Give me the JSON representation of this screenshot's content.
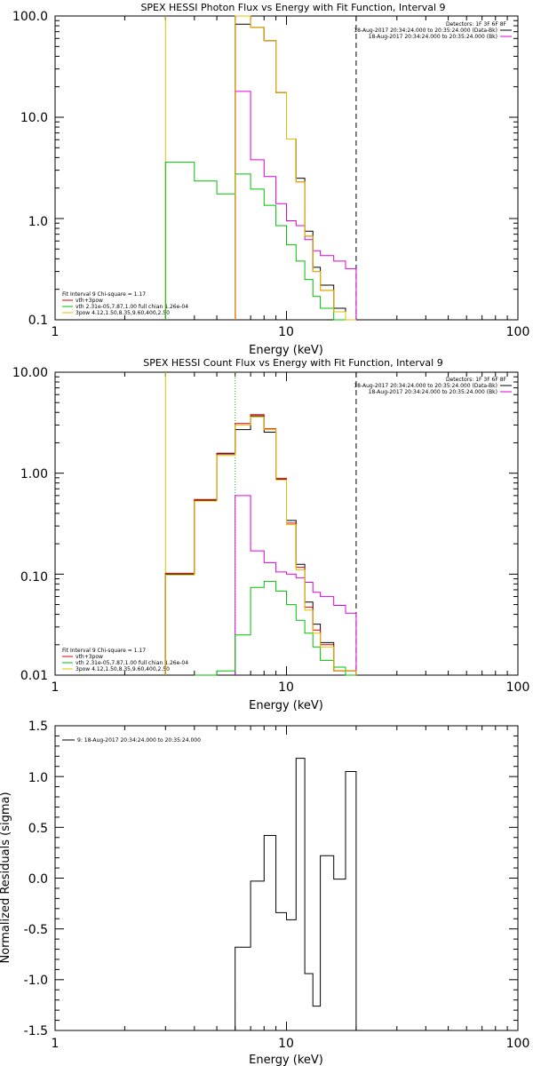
{
  "chart_data": [
    {
      "type": "line",
      "title": "SPEX HESSI Photon Flux vs Energy with Fit Function, Interval 9",
      "xlabel": "Energy (keV)",
      "ylabel": "",
      "xscale": "log",
      "yscale": "log",
      "xlim": [
        1,
        100
      ],
      "ylim": [
        0.1,
        100
      ],
      "xticks": [
        "1",
        "10",
        "100"
      ],
      "yticks": [
        "0.1",
        "1.0",
        "10.0",
        "100.0"
      ],
      "legend_top_right": [
        {
          "text": "Detectors: 1F 3F 6F 8F",
          "color": "#000000"
        },
        {
          "text": "18-Aug-2017 20:34:24.000 to 20:35:24.000 (Data-Bk)",
          "color": "#000000"
        },
        {
          "text": "18-Aug-2017 20:34:24.000 to 20:35:24.000 (Bk)",
          "color": "#e000e0"
        }
      ],
      "legend_bottom_left": [
        {
          "text": "Fit Interval  9    Chi-square = 1.17",
          "color": "#000000"
        },
        {
          "text": "vth+3pow",
          "color": "#e00000"
        },
        {
          "text": "vth 2.31e-05,7.87,1.00  full chian 1.26e-04",
          "color": "#00c000"
        },
        {
          "text": "3pow 4.12,1.50,8.35,9.60,400,2.50",
          "color": "#e0c000"
        }
      ],
      "energy_edges": [
        3,
        4,
        5,
        6,
        7,
        8,
        9,
        10,
        11,
        12,
        13,
        14,
        16,
        18,
        20
      ],
      "series": [
        {
          "name": "Data-Bk",
          "color": "#000000",
          "start_bin": 3,
          "values": [
            83,
            77,
            57,
            17.5,
            6.1,
            2.5,
            0.75,
            0.33,
            0.22,
            0.13,
            0.1
          ]
        },
        {
          "name": "Bk",
          "color": "#e000e0",
          "start_bin": 3,
          "values": [
            18,
            3.8,
            2.6,
            1.4,
            0.95,
            0.85,
            0.62,
            0.48,
            0.43,
            0.38,
            0.32
          ]
        },
        {
          "name": "vth+3pow",
          "color": "#e00000",
          "start_bin": 3,
          "values": [
            100,
            77,
            57,
            17.5,
            6.1,
            2.3,
            0.67,
            0.3,
            0.195,
            0.12,
            0.1
          ]
        },
        {
          "name": "vth",
          "color": "#00c000",
          "start_bin": 0,
          "values": [
            3.6,
            2.35,
            1.75,
            2.75,
            1.95,
            1.35,
            0.85,
            0.55,
            0.38,
            0.25,
            0.17,
            0.13,
            0.1,
            0.1
          ]
        },
        {
          "name": "3pow",
          "color": "#e0c000",
          "start_bin": 3,
          "values": [
            100,
            77,
            57,
            17.5,
            6.1,
            2.3,
            0.67,
            0.3,
            0.195,
            0.12,
            0.1
          ]
        }
      ],
      "vlines": [
        {
          "x": 3,
          "color": "#e0c000",
          "style": "solid",
          "label": ""
        },
        {
          "x": 6,
          "color": "#e000e0",
          "style": "dotted",
          "label": ""
        },
        {
          "x": 20,
          "color": "#000000",
          "style": "dashed",
          "label": ""
        }
      ]
    },
    {
      "type": "line",
      "title": "SPEX HESSI Count Flux vs Energy with Fit Function, Interval 9",
      "xlabel": "Energy (keV)",
      "ylabel": "",
      "xscale": "log",
      "yscale": "log",
      "xlim": [
        1,
        100
      ],
      "ylim": [
        0.01,
        10
      ],
      "xticks": [
        "1",
        "10",
        "100"
      ],
      "yticks": [
        "0.01",
        "0.10",
        "1.00",
        "10.00"
      ],
      "legend_top_right": [
        {
          "text": "Detectors: 1F 3F 6F 8F",
          "color": "#000000"
        },
        {
          "text": "18-Aug-2017 20:34:24.000 to 20:35:24.000 (Data-Bk)",
          "color": "#000000"
        },
        {
          "text": "18-Aug-2017 20:34:24.000 to 20:35:24.000 (Bk)",
          "color": "#e000e0"
        }
      ],
      "legend_bottom_left": [
        {
          "text": "Fit Interval  9    Chi-square = 1.17",
          "color": "#000000"
        },
        {
          "text": "vth+3pow",
          "color": "#e00000"
        },
        {
          "text": "vth 2.31e-05,7.87,1.00  full chian 1.26e-04",
          "color": "#00c000"
        },
        {
          "text": "3pow 4.12,1.50,8.35,9.60,400,2.50",
          "color": "#e0c000"
        }
      ],
      "energy_edges": [
        3,
        4,
        5,
        6,
        7,
        8,
        9,
        10,
        11,
        12,
        13,
        14,
        16,
        18,
        20
      ],
      "series": [
        {
          "name": "Data-Bk",
          "color": "#000000",
          "start_bin": 0,
          "values": [
            0.1,
            0.54,
            1.55,
            2.7,
            3.7,
            2.55,
            0.87,
            0.34,
            0.125,
            0.053,
            0.032,
            0.021,
            0.011,
            0.011
          ]
        },
        {
          "name": "Bk",
          "color": "#e000e0",
          "start_bin": 3,
          "values": [
            0.6,
            0.17,
            0.13,
            0.105,
            0.1,
            0.092,
            0.083,
            0.066,
            0.06,
            0.049,
            0.041
          ]
        },
        {
          "name": "vth+3pow",
          "color": "#e00000",
          "start_bin": 0,
          "values": [
            0.102,
            0.55,
            1.58,
            3.1,
            3.8,
            2.75,
            0.89,
            0.32,
            0.117,
            0.047,
            0.028,
            0.02,
            0.011,
            0.011
          ]
        },
        {
          "name": "vth",
          "color": "#00c000",
          "start_bin": 1,
          "values": [
            0.01,
            0.011,
            0.025,
            0.074,
            0.085,
            0.068,
            0.05,
            0.035,
            0.026,
            0.019,
            0.014,
            0.012,
            0.01
          ]
        },
        {
          "name": "3pow",
          "color": "#e0c000",
          "start_bin": 0,
          "values": [
            0.098,
            0.53,
            1.5,
            3.0,
            3.6,
            2.7,
            0.86,
            0.31,
            0.11,
            0.044,
            0.026,
            0.019,
            0.011,
            0.011
          ]
        }
      ],
      "vlines": [
        {
          "x": 3,
          "color": "#e0c000",
          "style": "solid",
          "label": ""
        },
        {
          "x": 6,
          "color": "#00c000",
          "style": "dotted",
          "label": ""
        },
        {
          "x": 20,
          "color": "#000000",
          "style": "dashed",
          "label": ""
        }
      ]
    },
    {
      "type": "line",
      "title": "",
      "xlabel": "Energy (keV)",
      "ylabel": "Normalized Residuals (sigma)",
      "xscale": "log",
      "yscale": "linear",
      "xlim": [
        1,
        100
      ],
      "ylim": [
        -1.5,
        1.5
      ],
      "xticks": [
        "1",
        "10",
        "100"
      ],
      "yticks": [
        "-1.5",
        "-1.0",
        "-0.5",
        "0.0",
        "0.5",
        "1.0",
        "1.5"
      ],
      "legend": [
        {
          "text": "9: 18-Aug-2017 20:34:24.000 to 20:35:24.000",
          "color": "#000000"
        }
      ],
      "energy_edges": [
        6,
        7,
        8,
        9,
        10,
        11,
        12,
        13,
        14,
        16,
        18,
        20
      ],
      "series": [
        {
          "name": "9: 18-Aug-2017 20:34:24.000 to 20:35:24.000",
          "color": "#000000",
          "start_bin": 0,
          "values": [
            -0.68,
            -0.03,
            0.42,
            -0.34,
            -0.41,
            1.18,
            -0.94,
            -1.26,
            0.22,
            -0.01,
            1.05
          ]
        }
      ],
      "vlines": []
    }
  ]
}
